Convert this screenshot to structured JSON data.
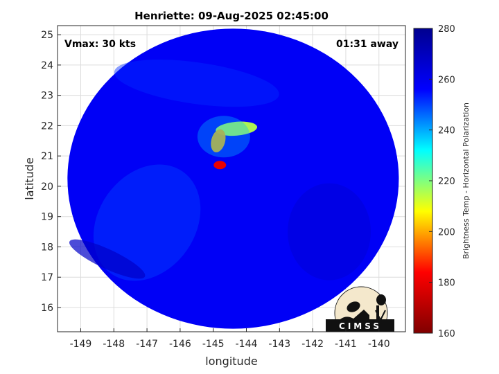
{
  "chart_data": {
    "type": "heatmap",
    "title": "Henriette: 09-Aug-2025 02:45:00",
    "xlabel": "longitude",
    "ylabel": "latitude",
    "xlim": [
      -149.7,
      -139.2
    ],
    "ylim": [
      15.2,
      25.3
    ],
    "xticks": [
      -149,
      -148,
      -147,
      -146,
      -145,
      -144,
      -143,
      -142,
      -141,
      -140
    ],
    "yticks": [
      16,
      17,
      18,
      19,
      20,
      21,
      22,
      23,
      24,
      25
    ],
    "grid": true,
    "annotations": {
      "left": "Vmax: 30 kts",
      "right": "01:31 away"
    },
    "colorbar": {
      "label": "Brightness Temp - Horizontal Polarization",
      "range": [
        160,
        280
      ],
      "ticks": [
        160,
        180,
        200,
        220,
        240,
        260,
        280
      ],
      "colormap": [
        "#800000",
        "#ff0000",
        "#ffff00",
        "#00ffff",
        "#0000ff",
        "#00008f"
      ]
    },
    "swath": {
      "center_lon": -144.4,
      "center_lat": 20.25,
      "radius_lon": 5.0,
      "radius_lat": 4.95,
      "background_temp": 258
    },
    "features": [
      {
        "name": "outer band",
        "lon": -147.0,
        "lat": 18.8,
        "temp": 250
      },
      {
        "name": "north band",
        "lon": -145.5,
        "lat": 23.4,
        "temp": 252
      },
      {
        "name": "cold band southwest",
        "lon": -148.2,
        "lat": 17.6,
        "temp": 268
      },
      {
        "name": "cold region east",
        "lon": -141.5,
        "lat": 18.5,
        "temp": 266
      },
      {
        "name": "convection arc",
        "lon": -144.3,
        "lat": 21.9,
        "temp": 215
      },
      {
        "name": "convection core",
        "lon": -144.85,
        "lat": 21.5,
        "temp": 200
      },
      {
        "name": "hot spot",
        "lon": -144.8,
        "lat": 20.7,
        "temp": 180
      }
    ]
  },
  "logo": {
    "text": "CIMSS"
  }
}
